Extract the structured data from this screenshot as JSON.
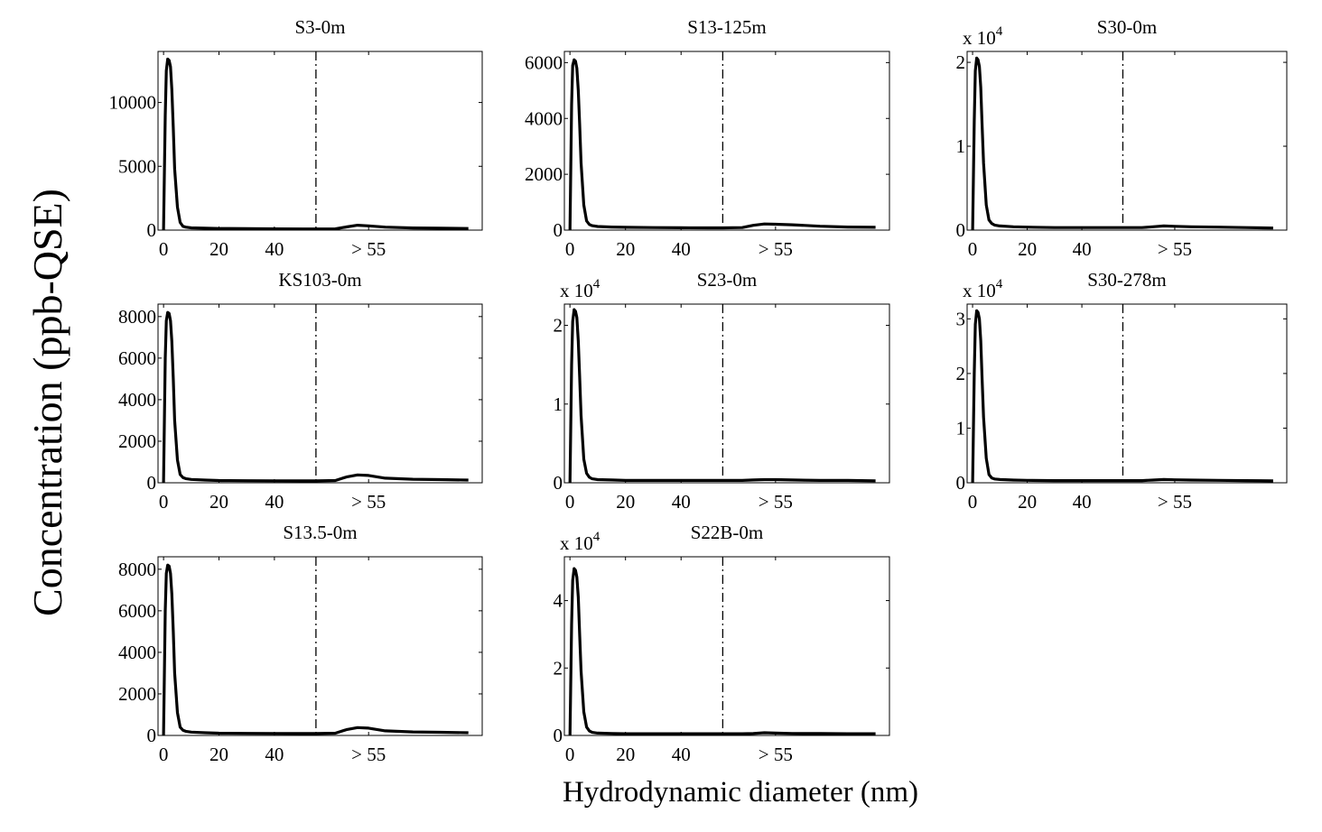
{
  "figure": {
    "ylabel": "Concentration (ppb-QSE)",
    "xlabel": "Hydrodynamic diameter (nm)"
  },
  "chart_data": [
    {
      "type": "line",
      "title": "S3-0m",
      "exponent_label": "",
      "xticks": [
        {
          "value": 0,
          "label": "0"
        },
        {
          "value": 20,
          "label": "20"
        },
        {
          "value": 40,
          "label": "40"
        },
        {
          "value": 74,
          "label": "> 55"
        }
      ],
      "yticks": [
        {
          "value": 0,
          "label": "0"
        },
        {
          "value": 5000,
          "label": "5000"
        },
        {
          "value": 10000,
          "label": "10000"
        }
      ],
      "xlim": [
        -2,
        115
      ],
      "ylim": [
        0,
        14000
      ],
      "divider_x": 55,
      "series": [
        {
          "x": [
            0,
            0.6,
            1,
            1.5,
            2,
            2.5,
            3,
            3.5,
            4,
            5,
            6,
            7,
            8,
            10,
            15,
            20,
            30,
            40,
            50,
            55,
            62,
            66,
            70,
            74,
            80,
            90,
            100,
            110
          ],
          "y": [
            0,
            9000,
            12500,
            13400,
            13300,
            12800,
            11000,
            8000,
            4800,
            1800,
            600,
            300,
            230,
            180,
            150,
            130,
            110,
            100,
            95,
            95,
            100,
            250,
            380,
            330,
            230,
            170,
            150,
            130
          ]
        }
      ]
    },
    {
      "type": "line",
      "title": "S13-125m",
      "exponent_label": "",
      "xticks": [
        {
          "value": 0,
          "label": "0"
        },
        {
          "value": 20,
          "label": "20"
        },
        {
          "value": 40,
          "label": "40"
        },
        {
          "value": 74,
          "label": "> 55"
        }
      ],
      "yticks": [
        {
          "value": 0,
          "label": "0"
        },
        {
          "value": 2000,
          "label": "2000"
        },
        {
          "value": 4000,
          "label": "4000"
        },
        {
          "value": 6000,
          "label": "6000"
        }
      ],
      "xlim": [
        -2,
        115
      ],
      "ylim": [
        0,
        6400
      ],
      "divider_x": 55,
      "series": [
        {
          "x": [
            0,
            0.6,
            1,
            1.5,
            2,
            2.5,
            3,
            3.5,
            4,
            5,
            6,
            7,
            8,
            10,
            15,
            20,
            30,
            40,
            50,
            55,
            62,
            66,
            70,
            74,
            80,
            90,
            100,
            110
          ],
          "y": [
            0,
            4500,
            5900,
            6100,
            6050,
            5800,
            5000,
            3800,
            2400,
            900,
            330,
            200,
            160,
            130,
            110,
            100,
            90,
            85,
            80,
            80,
            90,
            170,
            220,
            210,
            190,
            140,
            110,
            100
          ]
        }
      ]
    },
    {
      "type": "line",
      "title": "S30-0m",
      "exponent_label": "x 10",
      "exponent_sup": "4",
      "xticks": [
        {
          "value": 0,
          "label": "0"
        },
        {
          "value": 20,
          "label": "20"
        },
        {
          "value": 40,
          "label": "40"
        },
        {
          "value": 74,
          "label": "> 55"
        }
      ],
      "yticks": [
        {
          "value": 0,
          "label": "0"
        },
        {
          "value": 1,
          "label": "1"
        },
        {
          "value": 2,
          "label": "2"
        }
      ],
      "xlim": [
        -2,
        115
      ],
      "ylim": [
        0,
        2.13
      ],
      "divider_x": 55,
      "series": [
        {
          "x": [
            0,
            0.6,
            1,
            1.5,
            2,
            2.5,
            3,
            3.5,
            4,
            5,
            6,
            7,
            8,
            10,
            15,
            20,
            30,
            40,
            50,
            55,
            62,
            66,
            70,
            74,
            80,
            90,
            100,
            110
          ],
          "y": [
            0,
            1.3,
            1.9,
            2.05,
            2.03,
            1.95,
            1.7,
            1.25,
            0.8,
            0.3,
            0.12,
            0.08,
            0.06,
            0.05,
            0.04,
            0.035,
            0.03,
            0.03,
            0.03,
            0.03,
            0.03,
            0.04,
            0.05,
            0.045,
            0.04,
            0.035,
            0.03,
            0.025
          ]
        }
      ]
    },
    {
      "type": "line",
      "title": "KS103-0m",
      "exponent_label": "",
      "xticks": [
        {
          "value": 0,
          "label": "0"
        },
        {
          "value": 20,
          "label": "20"
        },
        {
          "value": 40,
          "label": "40"
        },
        {
          "value": 74,
          "label": "> 55"
        }
      ],
      "yticks": [
        {
          "value": 0,
          "label": "0"
        },
        {
          "value": 2000,
          "label": "2000"
        },
        {
          "value": 4000,
          "label": "4000"
        },
        {
          "value": 6000,
          "label": "6000"
        },
        {
          "value": 8000,
          "label": "8000"
        }
      ],
      "xlim": [
        -2,
        115
      ],
      "ylim": [
        0,
        8600
      ],
      "divider_x": 55,
      "series": [
        {
          "x": [
            0,
            0.6,
            1,
            1.5,
            2,
            2.5,
            3,
            3.5,
            4,
            5,
            6,
            7,
            8,
            10,
            15,
            20,
            30,
            40,
            50,
            55,
            62,
            66,
            70,
            74,
            80,
            90,
            100,
            110
          ],
          "y": [
            0,
            6000,
            7800,
            8200,
            8150,
            7800,
            6800,
            5000,
            3000,
            1100,
            400,
            250,
            200,
            160,
            130,
            110,
            100,
            95,
            90,
            90,
            110,
            280,
            380,
            350,
            220,
            170,
            150,
            130
          ]
        }
      ]
    },
    {
      "type": "line",
      "title": "S23-0m",
      "exponent_label": "x 10",
      "exponent_sup": "4",
      "xticks": [
        {
          "value": 0,
          "label": "0"
        },
        {
          "value": 20,
          "label": "20"
        },
        {
          "value": 40,
          "label": "40"
        },
        {
          "value": 74,
          "label": "> 55"
        }
      ],
      "yticks": [
        {
          "value": 0,
          "label": "0"
        },
        {
          "value": 1,
          "label": "1"
        },
        {
          "value": 2,
          "label": "2"
        }
      ],
      "xlim": [
        -2,
        115
      ],
      "ylim": [
        0,
        2.27
      ],
      "divider_x": 55,
      "series": [
        {
          "x": [
            0,
            0.6,
            1,
            1.5,
            2,
            2.5,
            3,
            3.5,
            4,
            5,
            6,
            7,
            8,
            10,
            15,
            20,
            30,
            40,
            50,
            55,
            62,
            66,
            70,
            74,
            80,
            90,
            100,
            110
          ],
          "y": [
            0,
            1.5,
            2.05,
            2.2,
            2.18,
            2.1,
            1.8,
            1.35,
            0.85,
            0.3,
            0.12,
            0.07,
            0.05,
            0.04,
            0.035,
            0.03,
            0.03,
            0.03,
            0.03,
            0.03,
            0.03,
            0.035,
            0.04,
            0.04,
            0.035,
            0.03,
            0.03,
            0.025
          ]
        }
      ]
    },
    {
      "type": "line",
      "title": "S30-278m",
      "exponent_label": "x 10",
      "exponent_sup": "4",
      "xticks": [
        {
          "value": 0,
          "label": "0"
        },
        {
          "value": 20,
          "label": "20"
        },
        {
          "value": 40,
          "label": "40"
        },
        {
          "value": 74,
          "label": "> 55"
        }
      ],
      "yticks": [
        {
          "value": 0,
          "label": "0"
        },
        {
          "value": 1,
          "label": "1"
        },
        {
          "value": 2,
          "label": "2"
        },
        {
          "value": 3,
          "label": "3"
        }
      ],
      "xlim": [
        -2,
        115
      ],
      "ylim": [
        0,
        3.27
      ],
      "divider_x": 55,
      "series": [
        {
          "x": [
            0,
            0.6,
            1,
            1.5,
            2,
            2.5,
            3,
            3.5,
            4,
            5,
            6,
            7,
            8,
            10,
            15,
            20,
            30,
            40,
            50,
            55,
            62,
            66,
            70,
            74,
            80,
            90,
            100,
            110
          ],
          "y": [
            0,
            2.0,
            2.9,
            3.15,
            3.12,
            3.0,
            2.6,
            1.9,
            1.2,
            0.45,
            0.15,
            0.09,
            0.07,
            0.06,
            0.05,
            0.045,
            0.04,
            0.04,
            0.04,
            0.04,
            0.04,
            0.05,
            0.06,
            0.055,
            0.05,
            0.045,
            0.04,
            0.035
          ]
        }
      ]
    },
    {
      "type": "line",
      "title": "S13.5-0m",
      "exponent_label": "",
      "xticks": [
        {
          "value": 0,
          "label": "0"
        },
        {
          "value": 20,
          "label": "20"
        },
        {
          "value": 40,
          "label": "40"
        },
        {
          "value": 74,
          "label": "> 55"
        }
      ],
      "yticks": [
        {
          "value": 0,
          "label": "0"
        },
        {
          "value": 2000,
          "label": "2000"
        },
        {
          "value": 4000,
          "label": "4000"
        },
        {
          "value": 6000,
          "label": "6000"
        },
        {
          "value": 8000,
          "label": "8000"
        }
      ],
      "xlim": [
        -2,
        115
      ],
      "ylim": [
        0,
        8600
      ],
      "divider_x": 55,
      "series": [
        {
          "x": [
            0,
            0.6,
            1,
            1.5,
            2,
            2.5,
            3,
            3.5,
            4,
            5,
            6,
            7,
            8,
            10,
            15,
            20,
            30,
            40,
            50,
            55,
            62,
            66,
            70,
            74,
            80,
            90,
            100,
            110
          ],
          "y": [
            0,
            6000,
            7800,
            8200,
            8150,
            7800,
            6800,
            5000,
            3000,
            1100,
            400,
            250,
            200,
            160,
            130,
            110,
            100,
            95,
            90,
            90,
            110,
            280,
            380,
            350,
            220,
            170,
            150,
            130
          ]
        }
      ]
    },
    {
      "type": "line",
      "title": "S22B-0m",
      "exponent_label": "x 10",
      "exponent_sup": "4",
      "xticks": [
        {
          "value": 0,
          "label": "0"
        },
        {
          "value": 20,
          "label": "20"
        },
        {
          "value": 40,
          "label": "40"
        },
        {
          "value": 74,
          "label": "> 55"
        }
      ],
      "yticks": [
        {
          "value": 0,
          "label": "0"
        },
        {
          "value": 2,
          "label": "2"
        },
        {
          "value": 4,
          "label": "4"
        }
      ],
      "xlim": [
        -2,
        115
      ],
      "ylim": [
        0,
        5.3
      ],
      "divider_x": 55,
      "series": [
        {
          "x": [
            0,
            0.6,
            1,
            1.5,
            2,
            2.5,
            3,
            3.5,
            4,
            5,
            6,
            7,
            8,
            10,
            15,
            20,
            30,
            40,
            50,
            55,
            62,
            66,
            70,
            74,
            80,
            90,
            100,
            110
          ],
          "y": [
            0,
            3.3,
            4.6,
            4.95,
            4.9,
            4.7,
            4.1,
            3.0,
            1.9,
            0.7,
            0.25,
            0.13,
            0.09,
            0.07,
            0.06,
            0.05,
            0.05,
            0.05,
            0.05,
            0.05,
            0.05,
            0.06,
            0.08,
            0.07,
            0.06,
            0.055,
            0.05,
            0.05
          ]
        }
      ]
    }
  ]
}
